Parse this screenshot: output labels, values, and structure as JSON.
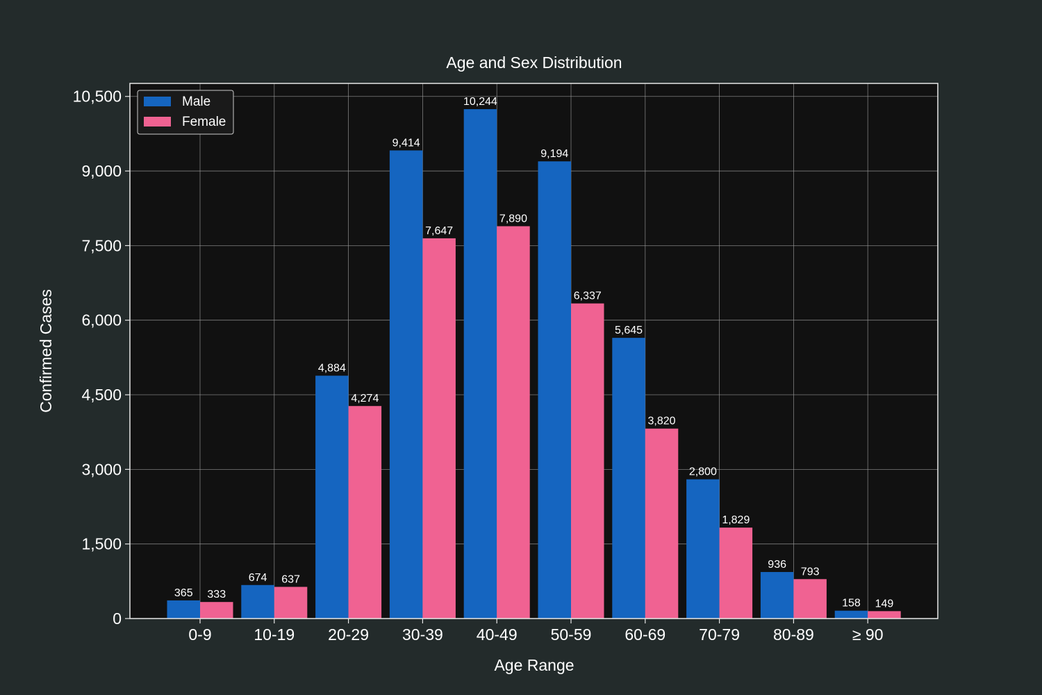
{
  "chart_data": {
    "type": "bar",
    "title": "Age and Sex Distribution",
    "xlabel": "Age Range",
    "ylabel": "Confirmed Cases",
    "categories": [
      "0-9",
      "10-19",
      "20-29",
      "30-39",
      "40-49",
      "50-59",
      "60-69",
      "70-79",
      "80-89",
      "≥ 90"
    ],
    "series": [
      {
        "name": "Male",
        "color": "#1565c0",
        "values": [
          365,
          674,
          4884,
          9414,
          10244,
          9194,
          5645,
          2800,
          936,
          158
        ]
      },
      {
        "name": "Female",
        "color": "#f06292",
        "values": [
          333,
          637,
          4274,
          7647,
          7890,
          6337,
          3820,
          1829,
          793,
          149
        ]
      }
    ],
    "ylim": [
      0,
      10762
    ],
    "yticks": [
      0,
      1500,
      3000,
      4500,
      6000,
      7500,
      9000,
      10500
    ],
    "ytick_labels": [
      "0",
      "1,500",
      "3,000",
      "4,500",
      "6,000",
      "7,500",
      "9,000",
      "10,500"
    ],
    "data_labels": [
      [
        "365",
        "674",
        "4,884",
        "9,414",
        "10,244",
        "9,194",
        "5,645",
        "2,800",
        "936",
        "158"
      ],
      [
        "333",
        "637",
        "4,274",
        "7,647",
        "7,890",
        "6,337",
        "3,820",
        "1,829",
        "793",
        "149"
      ]
    ],
    "grid": true,
    "legend_position": "top-left"
  }
}
